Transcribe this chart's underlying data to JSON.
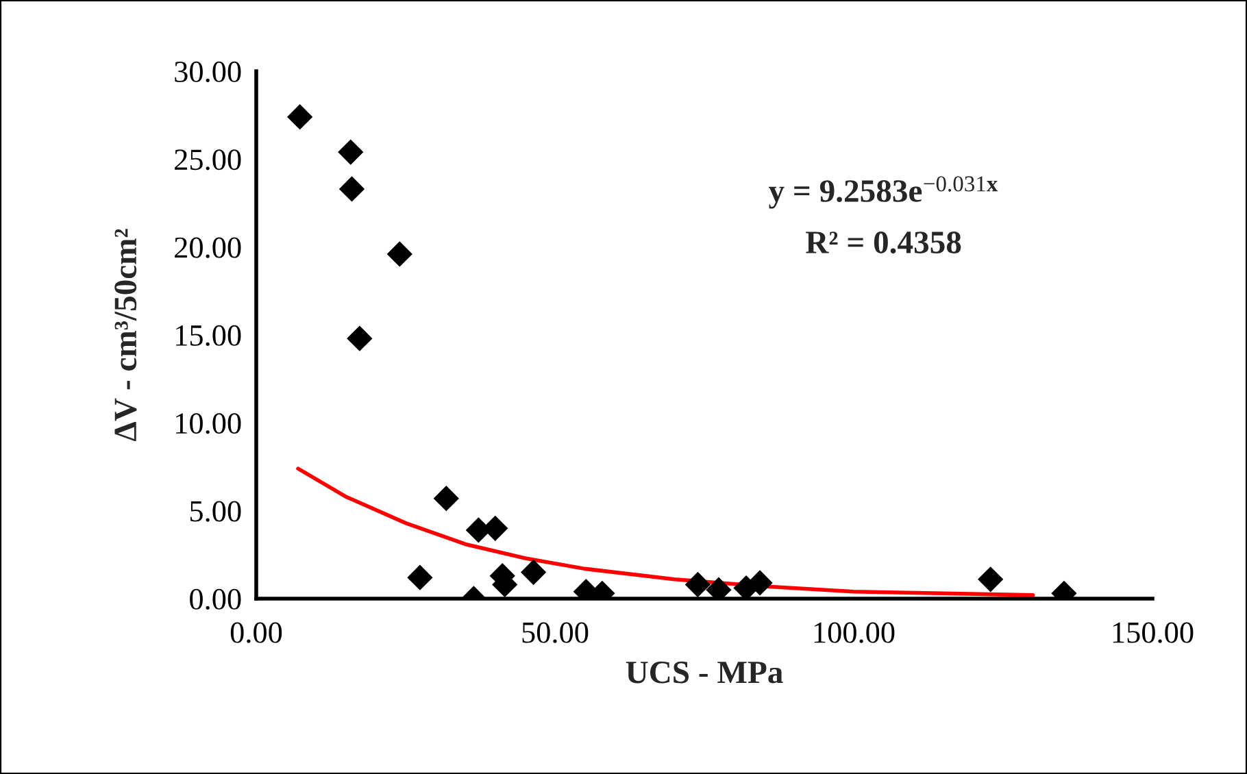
{
  "chart_data": {
    "type": "scatter",
    "xlabel": "UCS - MPa",
    "ylabel": "ΔV - cm³/50cm²",
    "annotations": [
      "y = 9.2583e$^{−0.031x}$",
      "R² = 0.4358"
    ],
    "xlim": [
      0,
      150
    ],
    "ylim": [
      0,
      30
    ],
    "xticks": [
      {
        "value": 0,
        "label": "0.00"
      },
      {
        "value": 50,
        "label": "50.00"
      },
      {
        "value": 100,
        "label": "100.00"
      },
      {
        "value": 150,
        "label": "150.00"
      }
    ],
    "yticks": [
      {
        "value": 0,
        "label": "0.00"
      },
      {
        "value": 5,
        "label": "5.00"
      },
      {
        "value": 10,
        "label": "10.00"
      },
      {
        "value": 15,
        "label": "15.00"
      },
      {
        "value": 20,
        "label": "20.00"
      },
      {
        "value": 25,
        "label": "25.00"
      },
      {
        "value": 30,
        "label": "30.00"
      }
    ],
    "grid": false,
    "legend": false,
    "marker": "diamond",
    "series": [
      {
        "color": "#000000",
        "x": [
          7.3,
          15.8,
          16.0,
          24.0,
          17.3,
          31.8,
          27.4,
          37.2,
          40.0,
          36.4,
          41.2,
          41.6,
          46.4,
          55.2,
          57.9,
          73.9,
          77.4,
          82.0,
          84.3,
          122.9,
          135.2
        ],
        "values": [
          27.4,
          25.4,
          23.3,
          19.6,
          14.8,
          5.7,
          1.2,
          3.9,
          4.0,
          0.0,
          1.3,
          0.8,
          1.5,
          0.4,
          0.3,
          0.8,
          0.5,
          0.6,
          0.9,
          1.1,
          0.3
        ]
      },
      {
        "type": "line",
        "color": "#ff0000",
        "marker": "none",
        "line_style": "solid",
        "x": [
          7,
          15,
          25,
          35,
          45,
          55,
          70,
          85,
          100,
          115,
          130
        ],
        "values": [
          7.4,
          5.8,
          4.3,
          3.1,
          2.3,
          1.7,
          1.1,
          0.7,
          0.4,
          0.3,
          0.2
        ]
      }
    ]
  }
}
